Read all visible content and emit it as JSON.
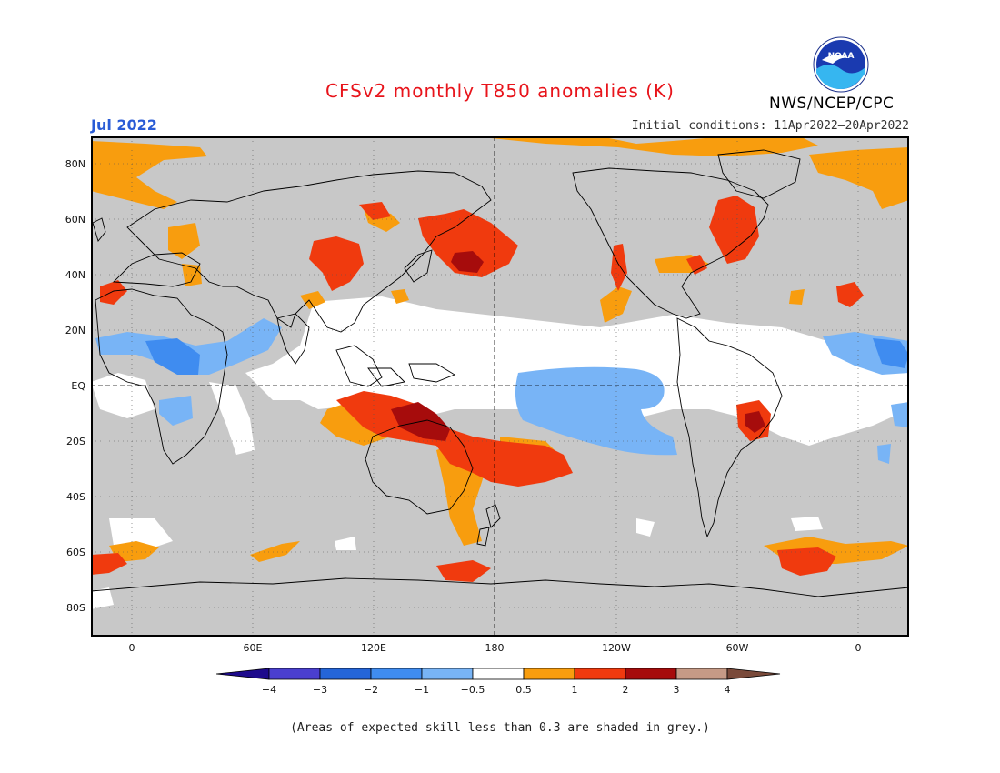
{
  "title": "CFSv2 monthly T850 anomalies (K)",
  "month": "Jul 2022",
  "initial_conditions": "Initial conditions: 11Apr2022–20Apr2022",
  "agency": "NWS/NCEP/CPC",
  "logo_text": "NOAA",
  "footnote": "(Areas of expected skill less than 0.3 are shaded in grey.)",
  "lat_labels": [
    "80N",
    "60N",
    "40N",
    "20N",
    "EQ",
    "20S",
    "40S",
    "60S",
    "80S"
  ],
  "lon_labels": [
    "0",
    "60E",
    "120E",
    "180",
    "120W",
    "60W",
    "0"
  ],
  "colorbar": {
    "labels": [
      "−4",
      "−3",
      "−2",
      "−1",
      "−0.5",
      "0.5",
      "1",
      "2",
      "3",
      "4"
    ],
    "colors": [
      "#1d0a8c",
      "#4a3fcf",
      "#2465d8",
      "#3f8cf0",
      "#78b4f6",
      "#ffffff",
      "#f89d0e",
      "#f03a0e",
      "#a60c0c",
      "#c59a86",
      "#7a4a3a"
    ]
  },
  "map_colors": {
    "grey": "#c8c8c8",
    "white": "#ffffff",
    "light_blue": "#78b4f6",
    "blue": "#3f8cf0",
    "orange": "#f89d0e",
    "red": "#f03a0e",
    "dark_red": "#a60c0c"
  }
}
